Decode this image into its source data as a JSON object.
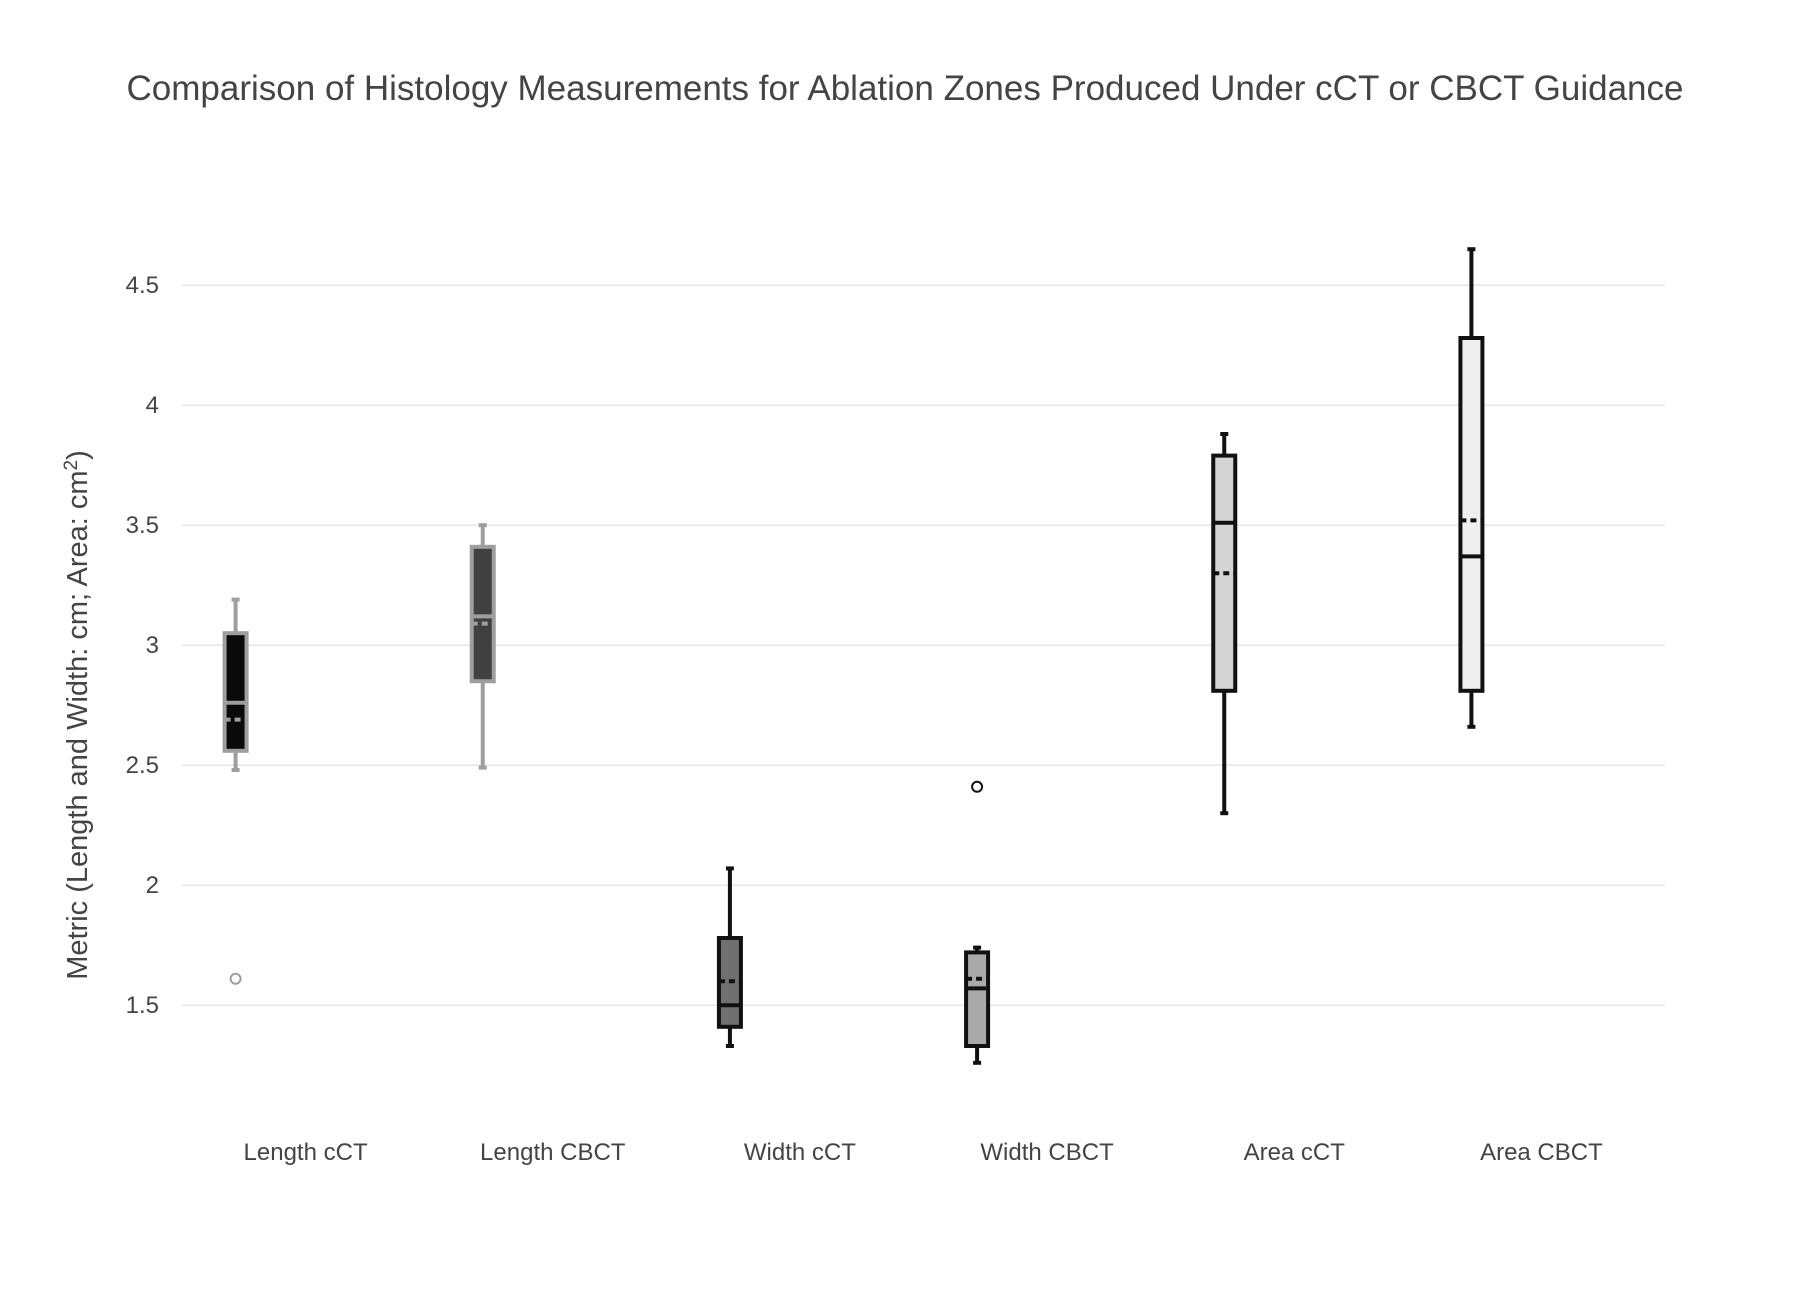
{
  "chart_data": {
    "type": "box",
    "title": "Comparison of Histology Measurements for Ablation Zones Produced Under cCT or CBCT Guidance",
    "xlabel": "",
    "ylabel": "Metric (Length and Width: cm; Area: cm",
    "ylabel_superscript": "2",
    "ylabel_suffix": ")",
    "ylim": [
      1.03,
      4.78
    ],
    "yticks": [
      1.5,
      2,
      2.5,
      3,
      3.5,
      4,
      4.5
    ],
    "ytick_labels": [
      "1.5",
      "2",
      "2.5",
      "3",
      "3.5",
      "4",
      "4.5"
    ],
    "grid": true,
    "legend": "none",
    "categories": [
      "Length cCT",
      "Length CBCT",
      "Width cCT",
      "Width CBCT",
      "Area cCT",
      "Area CBCT"
    ],
    "series": [
      {
        "category": "Length cCT",
        "lower_whisker": 2.48,
        "q1": 2.56,
        "median": 2.76,
        "mean": 2.69,
        "q3": 3.05,
        "upper_whisker": 3.19,
        "outliers": [
          1.61
        ],
        "fill": "#0a0a0a",
        "line": "#9e9e9e"
      },
      {
        "category": "Length CBCT",
        "lower_whisker": 2.49,
        "q1": 2.85,
        "median": 3.12,
        "mean": 3.09,
        "q3": 3.41,
        "upper_whisker": 3.5,
        "outliers": [],
        "fill": "#404040",
        "line": "#9e9e9e"
      },
      {
        "category": "Width cCT",
        "lower_whisker": 1.33,
        "q1": 1.41,
        "median": 1.5,
        "mean": 1.6,
        "q3": 1.78,
        "upper_whisker": 2.07,
        "outliers": [],
        "fill": "#707070",
        "line": "#111111"
      },
      {
        "category": "Width CBCT",
        "lower_whisker": 1.26,
        "q1": 1.33,
        "median": 1.57,
        "mean": 1.61,
        "q3": 1.72,
        "upper_whisker": 1.74,
        "outliers": [
          2.41
        ],
        "fill": "#aaaaaa",
        "line": "#111111"
      },
      {
        "category": "Area cCT",
        "lower_whisker": 2.3,
        "q1": 2.81,
        "median": 3.51,
        "mean": 3.3,
        "q3": 3.79,
        "upper_whisker": 3.88,
        "outliers": [],
        "fill": "#d4d4d4",
        "line": "#111111"
      },
      {
        "category": "Area CBCT",
        "lower_whisker": 2.66,
        "q1": 2.81,
        "median": 3.37,
        "mean": 3.52,
        "q3": 4.28,
        "upper_whisker": 4.65,
        "outliers": [],
        "fill": "#efefef",
        "line": "#111111"
      }
    ]
  }
}
